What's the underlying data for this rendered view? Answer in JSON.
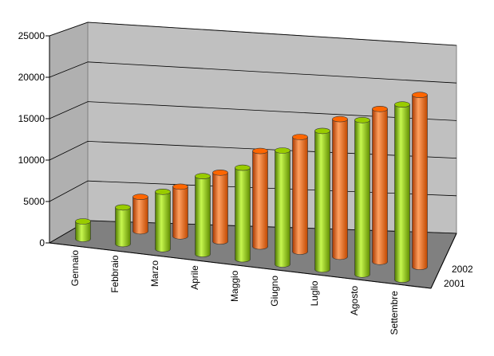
{
  "chart_data": {
    "type": "bar3d",
    "categories": [
      "Gennaio",
      "Febbraio",
      "Marzo",
      "Aprile",
      "Maggio",
      "Giugno",
      "Luglio",
      "Agosto",
      "Settembre"
    ],
    "series": [
      {
        "name": "2001",
        "color": "#99cc00",
        "values": [
          2200,
          4600,
          7200,
          9800,
          11500,
          14300,
          17400,
          19400,
          22000
        ]
      },
      {
        "name": "2002",
        "color": "#ff6600",
        "values": [
          null,
          4500,
          6500,
          9000,
          12500,
          15000,
          18000,
          20000,
          22500
        ]
      }
    ],
    "ylim": [
      0,
      25000
    ],
    "yticks": [
      0,
      5000,
      10000,
      15000,
      20000,
      25000
    ],
    "grid": true
  }
}
